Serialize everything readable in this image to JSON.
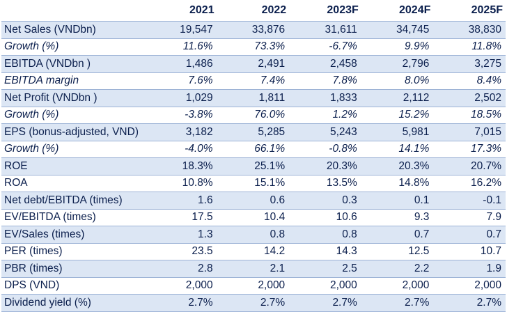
{
  "table": {
    "columns": [
      "",
      "2021",
      "2022",
      "2023F",
      "2024F",
      "2025F"
    ],
    "rows": [
      {
        "label": "Net Sales (VNDbn)",
        "values": [
          "19,547",
          "33,876",
          "31,611",
          "34,745",
          "38,830"
        ],
        "shaded": true,
        "italic": false
      },
      {
        "label": "Growth (%)",
        "values": [
          "11.6%",
          "73.3%",
          "-6.7%",
          "9.9%",
          "11.8%"
        ],
        "shaded": false,
        "italic": true
      },
      {
        "label": "EBITDA (VNDbn )",
        "values": [
          "1,486",
          "2,491",
          "2,458",
          "2,796",
          "3,275"
        ],
        "shaded": true,
        "italic": false
      },
      {
        "label": "EBITDA margin",
        "values": [
          "7.6%",
          "7.4%",
          "7.8%",
          "8.0%",
          "8.4%"
        ],
        "shaded": false,
        "italic": true
      },
      {
        "label": "Net Profit (VNDbn )",
        "values": [
          "1,029",
          "1,811",
          "1,833",
          "2,112",
          "2,502"
        ],
        "shaded": true,
        "italic": false
      },
      {
        "label": "Growth (%)",
        "values": [
          "-3.8%",
          "76.0%",
          "1.2%",
          "15.2%",
          "18.5%"
        ],
        "shaded": false,
        "italic": true
      },
      {
        "label": "EPS (bonus-adjusted, VND)",
        "values": [
          "3,182",
          "5,285",
          "5,243",
          "5,981",
          "7,015"
        ],
        "shaded": true,
        "italic": false
      },
      {
        "label": "Growth (%)",
        "values": [
          "-4.0%",
          "66.1%",
          "-0.8%",
          "14.1%",
          "17.3%"
        ],
        "shaded": false,
        "italic": true
      },
      {
        "label": "ROE",
        "values": [
          "18.3%",
          "25.1%",
          "20.3%",
          "20.3%",
          "20.7%"
        ],
        "shaded": true,
        "italic": false
      },
      {
        "label": "ROA",
        "values": [
          "10.8%",
          "15.1%",
          "13.5%",
          "14.8%",
          "16.2%"
        ],
        "shaded": false,
        "italic": false
      },
      {
        "label": "Net debt/EBITDA (times)",
        "values": [
          "1.6",
          "0.6",
          "0.3",
          "0.1",
          "-0.1"
        ],
        "shaded": true,
        "italic": false
      },
      {
        "label": "EV/EBITDA (times)",
        "values": [
          "17.5",
          "10.4",
          "10.6",
          "9.3",
          "7.9"
        ],
        "shaded": false,
        "italic": false
      },
      {
        "label": "EV/Sales (times)",
        "values": [
          "1.3",
          "0.8",
          "0.8",
          "0.7",
          "0.7"
        ],
        "shaded": true,
        "italic": false
      },
      {
        "label": "PER (times)",
        "values": [
          "23.5",
          "14.2",
          "14.3",
          "12.5",
          "10.7"
        ],
        "shaded": false,
        "italic": false
      },
      {
        "label": "PBR (times)",
        "values": [
          "2.8",
          "2.1",
          "2.5",
          "2.2",
          "1.9"
        ],
        "shaded": true,
        "italic": false
      },
      {
        "label": "DPS (VND)",
        "values": [
          "2,000",
          "2,000",
          "2,000",
          "2,000",
          "2,000"
        ],
        "shaded": false,
        "italic": false
      },
      {
        "label": "Dividend yield (%)",
        "values": [
          "2.7%",
          "2.7%",
          "2.7%",
          "2.7%",
          "2.7%"
        ],
        "shaded": true,
        "italic": false
      }
    ]
  }
}
